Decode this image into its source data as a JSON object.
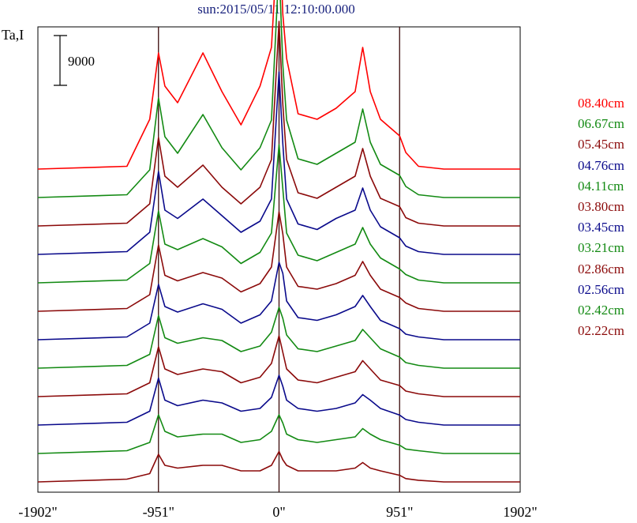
{
  "chart_data": {
    "type": "line",
    "title": "sun:2015/05/11 12:10:00.000",
    "ylabel": "Ta,I",
    "scale_bar_label": "9000",
    "x_ticks": [
      {
        "value": -1902,
        "label": "-1902\""
      },
      {
        "value": -951,
        "label": "-951\""
      },
      {
        "value": 0,
        "label": "0\""
      },
      {
        "value": 951,
        "label": "951\""
      },
      {
        "value": 1902,
        "label": "1902\""
      }
    ],
    "xlim": [
      -1902,
      1902
    ],
    "vertical_lines": [
      -951,
      0,
      951
    ],
    "grid": false,
    "legend_position": "right",
    "series_offset": 9000,
    "x": [
      -1902,
      -1200,
      -1020,
      -951,
      -900,
      -800,
      -600,
      -450,
      -300,
      -150,
      -60,
      0,
      30,
      60,
      150,
      300,
      450,
      600,
      660,
      720,
      800,
      951,
      1000,
      1100,
      1300,
      1902
    ],
    "series": [
      {
        "name": "08.40cm",
        "color": "#ff0000",
        "values": [
          0,
          500,
          9000,
          21000,
          15000,
          12000,
          21000,
          14000,
          8000,
          15000,
          22000,
          46000,
          28000,
          20000,
          10000,
          9000,
          11000,
          14000,
          22000,
          14000,
          9000,
          6000,
          3000,
          500,
          0,
          0
        ]
      },
      {
        "name": "06.67cm",
        "color": "#138a13",
        "values": [
          0,
          500,
          5000,
          18000,
          11000,
          8000,
          15000,
          9000,
          5000,
          9000,
          14000,
          42000,
          24000,
          14000,
          7000,
          6000,
          8000,
          10000,
          16000,
          10000,
          6000,
          4000,
          2000,
          500,
          0,
          0
        ]
      },
      {
        "name": "05.45cm",
        "color": "#8b0a0a",
        "values": [
          0,
          500,
          4000,
          16000,
          9000,
          7000,
          11000,
          7000,
          4000,
          7000,
          12000,
          37000,
          22000,
          12000,
          6000,
          5000,
          7000,
          9000,
          14000,
          9000,
          5000,
          3500,
          1500,
          500,
          0,
          0
        ]
      },
      {
        "name": "04.76cm",
        "color": "#0a0a8b",
        "values": [
          0,
          500,
          4000,
          15000,
          8000,
          6500,
          10000,
          7000,
          4000,
          6000,
          10000,
          33000,
          20000,
          10000,
          5500,
          4500,
          6500,
          8000,
          12000,
          8000,
          5000,
          3000,
          1500,
          500,
          0,
          0
        ]
      },
      {
        "name": "04.11cm",
        "color": "#138a13",
        "values": [
          0,
          500,
          3500,
          13000,
          7000,
          6000,
          8000,
          6500,
          3500,
          5500,
          9000,
          25000,
          17000,
          9000,
          5000,
          4000,
          5500,
          7000,
          10000,
          7000,
          4500,
          2500,
          1500,
          500,
          0,
          0
        ]
      },
      {
        "name": "03.80cm",
        "color": "#8b0a0a",
        "values": [
          0,
          500,
          3000,
          12000,
          6500,
          5500,
          7000,
          6000,
          3500,
          5000,
          8000,
          18000,
          14000,
          8000,
          4500,
          4000,
          5000,
          6500,
          9000,
          6500,
          4000,
          2500,
          1500,
          500,
          0,
          0
        ]
      },
      {
        "name": "03.45cm",
        "color": "#0a0a8b",
        "values": [
          0,
          500,
          3000,
          10000,
          6000,
          5000,
          6500,
          5500,
          3000,
          4500,
          7000,
          14000,
          12000,
          7000,
          4000,
          3500,
          4500,
          6000,
          8000,
          6000,
          3500,
          2000,
          1000,
          500,
          0,
          0
        ]
      },
      {
        "name": "03.21cm",
        "color": "#138a13",
        "values": [
          0,
          500,
          2500,
          9500,
          5500,
          4500,
          5500,
          5000,
          3000,
          4000,
          6500,
          11000,
          9000,
          6000,
          3500,
          3000,
          4000,
          5000,
          7000,
          5500,
          3500,
          2000,
          1000,
          500,
          0,
          0
        ]
      },
      {
        "name": "02.86cm",
        "color": "#8b0a0a",
        "values": [
          0,
          500,
          2500,
          9000,
          5000,
          4000,
          5000,
          4500,
          2500,
          3500,
          6000,
          11000,
          8000,
          5000,
          3000,
          2500,
          3500,
          4500,
          6500,
          5000,
          3000,
          2000,
          1000,
          500,
          0,
          0
        ]
      },
      {
        "name": "02.56cm",
        "color": "#0a0a8b",
        "values": [
          0,
          500,
          2500,
          8500,
          4500,
          3500,
          4500,
          4000,
          2500,
          3000,
          5000,
          9000,
          7000,
          4500,
          3000,
          2500,
          3000,
          4000,
          5500,
          4500,
          3000,
          1800,
          1000,
          500,
          0,
          0
        ]
      },
      {
        "name": "02.42cm",
        "color": "#138a13",
        "values": [
          0,
          500,
          2000,
          7000,
          4000,
          3000,
          3500,
          3500,
          2000,
          2500,
          4000,
          7000,
          5500,
          3500,
          2500,
          2000,
          2500,
          3000,
          4500,
          3500,
          2500,
          1500,
          800,
          500,
          0,
          0
        ]
      },
      {
        "name": "02.22cm",
        "color": "#8b0a0a",
        "values": [
          0,
          500,
          1500,
          5000,
          3000,
          2500,
          3000,
          3000,
          2000,
          2000,
          3000,
          5500,
          4000,
          3000,
          2000,
          2000,
          2000,
          2500,
          3500,
          2500,
          2000,
          1200,
          600,
          300,
          0,
          0
        ]
      }
    ]
  }
}
